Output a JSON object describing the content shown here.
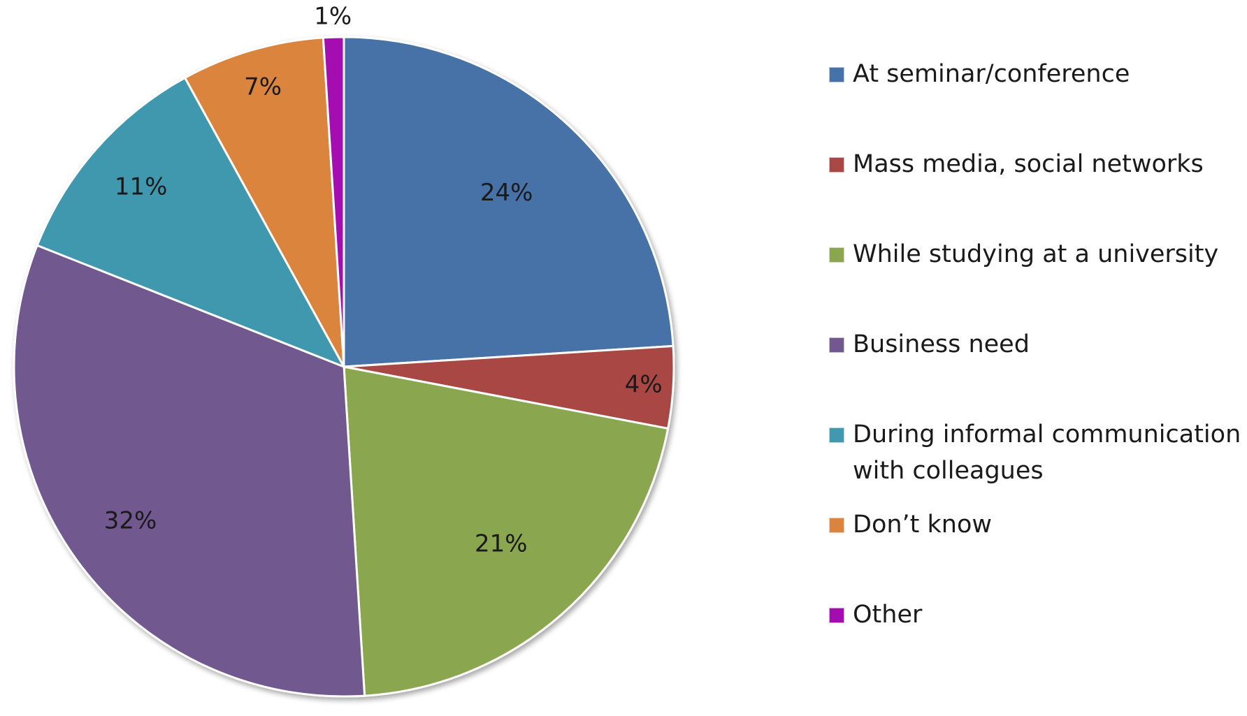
{
  "chart_data": {
    "type": "pie",
    "title": "",
    "start": "12 o'clock",
    "direction": "clockwise",
    "legend_position": "right",
    "slices": [
      {
        "label": "At seminar/conference",
        "value": 24,
        "display": "24%",
        "color": "#4672A8"
      },
      {
        "label": "Mass media, social networks",
        "value": 4,
        "display": "4%",
        "color": "#A94744"
      },
      {
        "label": "While studying at a university",
        "value": 21,
        "display": "21%",
        "color": "#8AA74F"
      },
      {
        "label": "Business need",
        "value": 32,
        "display": "32%",
        "color": "#71588F"
      },
      {
        "label": "During informal communication with colleagues",
        "value": 11,
        "display": "11%",
        "color": "#4198AF"
      },
      {
        "label": "Don’t know",
        "value": 7,
        "display": "7%",
        "color": "#DB843D"
      },
      {
        "label": "Other",
        "value": 1,
        "display": "1%",
        "color": "#A40CB0"
      }
    ]
  }
}
